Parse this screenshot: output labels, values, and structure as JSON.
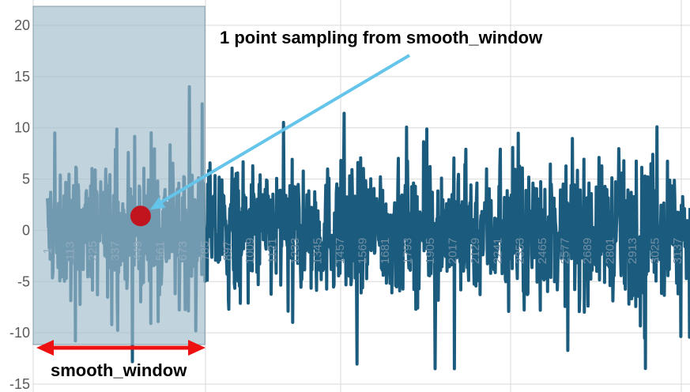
{
  "chart_data": {
    "type": "line",
    "title": "",
    "xlabel": "",
    "ylabel": "",
    "ylim": [
      -15,
      20
    ],
    "y_ticks": [
      "20",
      "15",
      "10",
      "5",
      "0",
      "-5",
      "-10",
      "-15"
    ],
    "x_ticks": [
      "1",
      "113",
      "225",
      "337",
      "449",
      "561",
      "673",
      "785",
      "897",
      "1009",
      "1121",
      "1233",
      "1345",
      "1457",
      "1569",
      "1681",
      "1793",
      "1905",
      "2017",
      "2129",
      "2241",
      "2353",
      "2465",
      "2577",
      "2689",
      "2801",
      "2913",
      "3025",
      "3137"
    ],
    "x_range": [
      1,
      3200
    ],
    "series": [
      {
        "name": "",
        "color": "#1b5c7e",
        "noise_amplitude": 5,
        "approx_points": 3200
      }
    ],
    "smooth_window": {
      "x_start": 1,
      "x_end": 785
    },
    "sampled_point": {
      "x": 465,
      "y": 1.4
    },
    "annotations": {
      "top_label": "1 point sampling from smooth_window",
      "window_label": "smooth_window"
    },
    "grid": {
      "vertical": true,
      "horizontal": true
    },
    "colors": {
      "series": "#1b5c7e",
      "window_fill": "#9fbccb",
      "point": "#c0151f",
      "arrow": "#65c4ea",
      "double_arrow": "#ee1111",
      "grid": "#d9d9d9"
    }
  }
}
